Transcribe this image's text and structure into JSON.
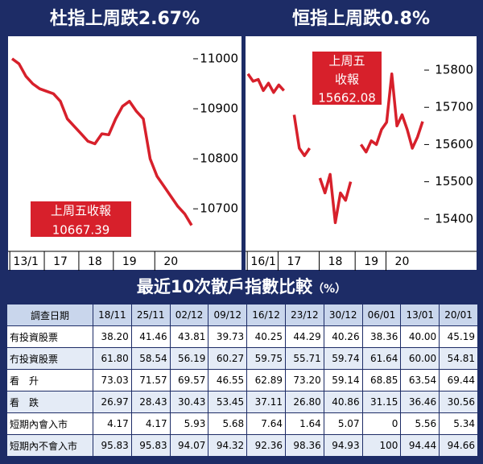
{
  "chart_data": [
    {
      "type": "line",
      "title": "杜指上周跌2.67%",
      "categories": [
        null,
        null,
        "13/1",
        null,
        null,
        null,
        null,
        "17",
        null,
        null,
        null,
        null,
        "18",
        null,
        null,
        null,
        null,
        "19",
        null,
        null,
        null,
        null,
        null,
        "20",
        null,
        null,
        null
      ],
      "series": [
        {
          "color": "#d7202b",
          "values": [
            11000,
            10990,
            10965,
            10950,
            10940,
            10935,
            10930,
            10915,
            10880,
            10865,
            10850,
            10835,
            10830,
            10850,
            10848,
            10880,
            10905,
            10915,
            10895,
            10880,
            10800,
            10765,
            10745,
            10725,
            10705,
            10690,
            10667
          ]
        }
      ],
      "ylim": [
        10615,
        11045
      ],
      "yticks": [
        11000,
        10900,
        10800,
        10700
      ],
      "annotation": [
        "上周五收報",
        "10667.39"
      ]
    },
    {
      "type": "line",
      "title": "恒指上周跌0.8%",
      "categories": [
        null,
        null,
        null,
        "16/1",
        null,
        null,
        null,
        null,
        null,
        "17",
        null,
        null,
        null,
        null,
        null,
        null,
        null,
        "18",
        null,
        null,
        null,
        null,
        null,
        null,
        "19",
        null,
        null,
        null,
        null,
        null,
        "20",
        null,
        null,
        null,
        null
      ],
      "series": [
        {
          "color": "#d7202b",
          "values": [
            15790,
            15770,
            15775,
            15745,
            15765,
            15740,
            15760,
            15745,
            null,
            15680,
            15590,
            15570,
            15590,
            null,
            15510,
            15470,
            15520,
            15390,
            15470,
            15450,
            15500,
            null,
            15600,
            15580,
            15610,
            15600,
            15640,
            15660,
            15790,
            15650,
            15680,
            15640,
            15590,
            15620,
            15662
          ]
        }
      ],
      "ylim": [
        15313,
        15891
      ],
      "yticks": [
        15800,
        15700,
        15600,
        15500,
        15400
      ],
      "annotation": [
        "上周五",
        "收報",
        "15662.08"
      ]
    }
  ],
  "table": {
    "title": "最近10次散戶指數比較",
    "unit": "（%）",
    "header": [
      "調查日期",
      "18/11",
      "25/11",
      "02/12",
      "09/12",
      "16/12",
      "23/12",
      "30/12",
      "06/01",
      "13/01",
      "20/01"
    ],
    "rows": [
      [
        "有投資股票",
        "38.20",
        "41.46",
        "43.81",
        "39.73",
        "40.25",
        "44.29",
        "40.26",
        "38.36",
        "40.00",
        "45.19"
      ],
      [
        "冇投資股票",
        "61.80",
        "58.54",
        "56.19",
        "60.27",
        "59.75",
        "55.71",
        "59.74",
        "61.64",
        "60.00",
        "54.81"
      ],
      [
        "看　升",
        "73.03",
        "71.57",
        "69.57",
        "46.55",
        "62.89",
        "73.20",
        "59.14",
        "68.85",
        "63.54",
        "69.44"
      ],
      [
        "看　跌",
        "26.97",
        "28.43",
        "30.43",
        "53.45",
        "37.11",
        "26.80",
        "40.86",
        "31.15",
        "36.46",
        "30.56"
      ],
      [
        "短期內會入市",
        "4.17",
        "4.17",
        "5.93",
        "5.68",
        "7.64",
        "1.64",
        "5.07",
        "0",
        "5.56",
        "5.34"
      ],
      [
        "短期內不會入市",
        "95.83",
        "95.83",
        "94.07",
        "94.32",
        "92.36",
        "98.36",
        "94.93",
        "100",
        "94.44",
        "94.66"
      ]
    ]
  }
}
